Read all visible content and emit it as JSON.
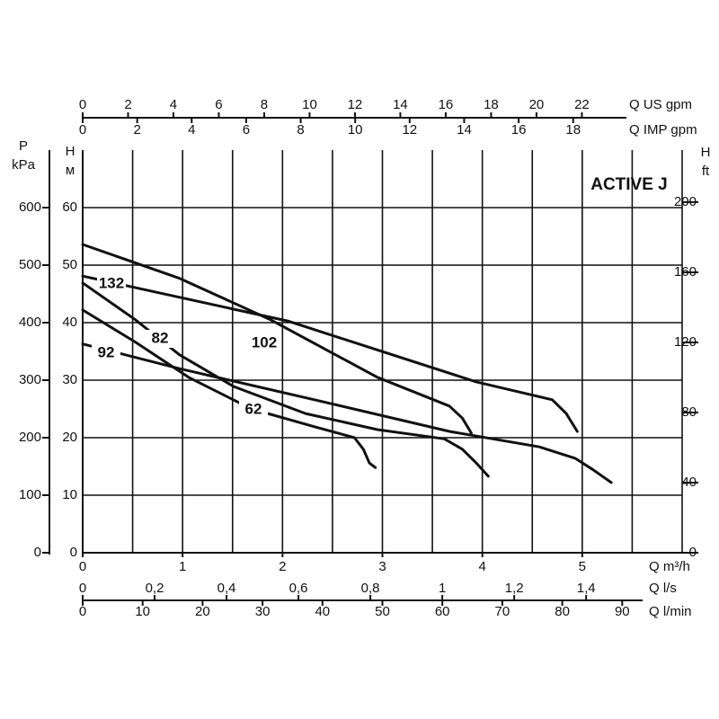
{
  "chart_data": {
    "type": "line",
    "title": "ACTIVE J",
    "x_label": "Q m³/h",
    "xlim": [
      0,
      6
    ],
    "xticks": [
      0,
      1,
      2,
      3,
      4,
      5
    ],
    "x_gridlines": [
      0,
      0.5,
      1,
      1.5,
      2,
      2.5,
      3,
      3.5,
      4,
      4.5,
      5,
      5.5,
      6
    ],
    "y_label": "H",
    "y_unit": "м",
    "ylim": [
      0,
      70
    ],
    "yticks": [
      0,
      10,
      20,
      30,
      40,
      50,
      60
    ],
    "grid": true,
    "pressure_axis": {
      "label": "P",
      "unit": "kPa",
      "lim": [
        0,
        700
      ],
      "ticks": [
        0,
        100,
        200,
        300,
        400,
        500,
        600
      ]
    },
    "feet_axis": {
      "label": "H",
      "unit": "ft",
      "lim": [
        0,
        229.7
      ],
      "ticks": [
        0,
        40,
        80,
        120,
        160,
        200
      ]
    },
    "top_axes": [
      {
        "label": "Q US gpm",
        "lim": [
          0,
          26.42
        ],
        "ticks": [
          0,
          2,
          4,
          6,
          8,
          10,
          12,
          14,
          16,
          18,
          20,
          22
        ]
      },
      {
        "label": "Q IMP gpm",
        "lim": [
          0,
          22.0
        ],
        "ticks": [
          0,
          2,
          4,
          6,
          8,
          10,
          12,
          14,
          16,
          18
        ]
      }
    ],
    "bottom_axes": [
      {
        "label": "Q l/s",
        "lim": [
          0,
          1.667
        ],
        "ticks": [
          0,
          {
            "value": 0.2,
            "label": "0,2"
          },
          {
            "value": 0.4,
            "label": "0,4"
          },
          {
            "value": 0.6,
            "label": "0,6"
          },
          {
            "value": 0.8,
            "label": "0,8"
          },
          1,
          {
            "value": 1.2,
            "label": "1,2"
          },
          {
            "value": 1.4,
            "label": "1,4"
          }
        ]
      },
      {
        "label": "Q l/min",
        "lim": [
          0,
          100
        ],
        "ticks": [
          0,
          10,
          20,
          30,
          40,
          50,
          60,
          70,
          80,
          90
        ]
      }
    ],
    "series": [
      {
        "name": "132",
        "color": "#111111",
        "x": [
          0,
          2.05,
          3.94,
          4.7,
          4.84,
          4.95
        ],
        "values": [
          48.1,
          40.3,
          29.7,
          26.6,
          24.2,
          21.1
        ]
      },
      {
        "name": "102",
        "color": "#111111",
        "x": [
          0,
          0.97,
          1.87,
          2.95,
          3.67,
          3.8,
          3.89
        ],
        "values": [
          53.6,
          47.7,
          40.6,
          30.5,
          25.5,
          23.4,
          20.8
        ]
      },
      {
        "name": "82",
        "color": "#111111",
        "x": [
          0,
          0.52,
          0.97,
          1.51,
          2.23,
          2.95,
          3.62,
          3.8,
          3.94,
          4.06
        ],
        "values": [
          46.9,
          40.6,
          34.4,
          28.9,
          24.2,
          21.4,
          19.8,
          18.0,
          15.6,
          13.3
        ]
      },
      {
        "name": "92",
        "color": "#111111",
        "x": [
          0,
          0.97,
          2.32,
          3.67,
          4.57,
          4.93,
          5.11,
          5.29
        ],
        "values": [
          36.3,
          32.0,
          26.6,
          21.1,
          18.4,
          16.4,
          14.4,
          12.2
        ]
      },
      {
        "name": "62",
        "color": "#111111",
        "x": [
          0,
          0.52,
          1.06,
          1.69,
          2.32,
          2.72,
          2.81,
          2.87,
          2.93
        ],
        "values": [
          42.2,
          36.7,
          30.5,
          25.0,
          21.9,
          20.0,
          17.97,
          15.6,
          14.8
        ]
      }
    ]
  }
}
